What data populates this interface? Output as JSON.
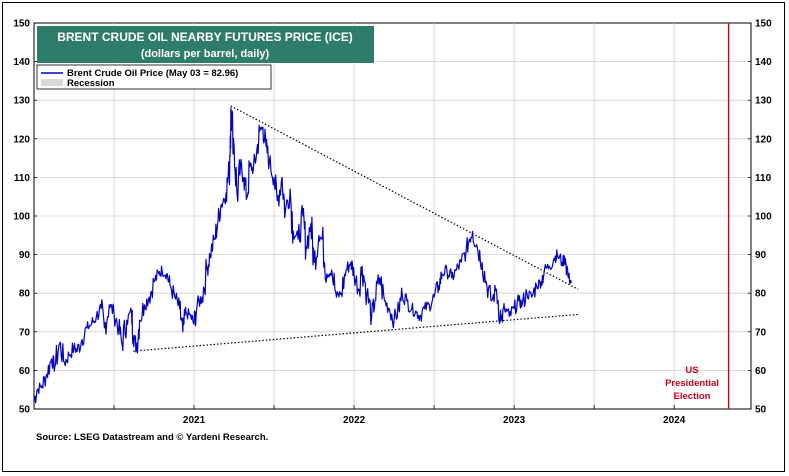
{
  "chart_data": {
    "type": "line",
    "title": "BRENT CRUDE OIL NEARBY FUTURES  PRICE (ICE)",
    "subtitle": "(dollars per barrel, daily)",
    "ylim": [
      50,
      150
    ],
    "yticks": [
      50,
      60,
      70,
      80,
      90,
      100,
      110,
      120,
      130,
      140,
      150
    ],
    "xlim": [
      2020.5,
      2024.98
    ],
    "x_tick_labels": [
      "2021",
      "2022",
      "2023",
      "2024"
    ],
    "legend": [
      {
        "name": "Brent Crude Oil Price (May 03 = 82.96)",
        "color": "#0000cc"
      },
      {
        "name": "Recession",
        "color": "#d9d9d9"
      }
    ],
    "series": [
      {
        "name": "Brent Crude Oil Price (May 03 = 82.96)",
        "color": "#0000cc",
        "points": [
          [
            2020.5,
            52
          ],
          [
            2020.52,
            55
          ],
          [
            2020.55,
            56
          ],
          [
            2020.58,
            59
          ],
          [
            2020.61,
            63
          ],
          [
            2020.63,
            61
          ],
          [
            2020.66,
            67
          ],
          [
            2020.69,
            62
          ],
          [
            2020.72,
            64
          ],
          [
            2020.75,
            66
          ],
          [
            2020.77,
            65
          ],
          [
            2020.8,
            68
          ],
          [
            2020.83,
            71
          ],
          [
            2020.86,
            72
          ],
          [
            2020.89,
            74
          ],
          [
            2020.92,
            76
          ],
          [
            2020.94,
            71
          ],
          [
            2020.97,
            77
          ],
          [
            2021.0,
            75
          ],
          [
            2021.03,
            71
          ],
          [
            2021.05,
            67
          ],
          [
            2021.08,
            73
          ],
          [
            2021.11,
            75
          ],
          [
            2021.12,
            69
          ],
          [
            2021.14,
            66
          ],
          [
            2021.16,
            73
          ],
          [
            2021.19,
            77
          ],
          [
            2021.22,
            79
          ],
          [
            2021.25,
            83
          ],
          [
            2021.28,
            85
          ],
          [
            2021.3,
            86
          ],
          [
            2021.33,
            85
          ],
          [
            2021.35,
            82
          ],
          [
            2021.38,
            79
          ],
          [
            2021.41,
            76
          ],
          [
            2021.43,
            70
          ],
          [
            2021.45,
            75
          ],
          [
            2021.48,
            74
          ],
          [
            2021.5,
            72
          ],
          [
            2021.52,
            77
          ],
          [
            2021.55,
            79
          ],
          [
            2021.58,
            86
          ],
          [
            2021.6,
            90
          ],
          [
            2021.63,
            94
          ],
          [
            2021.65,
            99
          ],
          [
            2021.67,
            103
          ],
          [
            2021.7,
            106
          ],
          [
            2021.72,
            112
          ],
          [
            2021.73,
            128
          ],
          [
            2021.75,
            118
          ],
          [
            2021.77,
            105
          ],
          [
            2021.79,
            113
          ],
          [
            2021.81,
            110
          ],
          [
            2021.83,
            105
          ],
          [
            2021.85,
            113
          ],
          [
            2021.87,
            112
          ],
          [
            2021.89,
            116
          ],
          [
            2021.91,
            122
          ],
          [
            2021.93,
            123
          ],
          [
            2021.95,
            118
          ],
          [
            2021.97,
            114
          ],
          [
            2022.0,
            110
          ],
          [
            2022.02,
            104
          ],
          [
            2022.05,
            110
          ],
          [
            2022.07,
            101
          ],
          [
            2022.1,
            107
          ],
          [
            2022.12,
            96
          ],
          [
            2022.15,
            94
          ],
          [
            2022.18,
            100
          ],
          [
            2022.2,
            92
          ],
          [
            2022.23,
            98
          ],
          [
            2022.25,
            88
          ],
          [
            2022.28,
            95
          ],
          [
            2022.3,
            94
          ],
          [
            2022.33,
            85
          ],
          [
            2022.36,
            86
          ],
          [
            2022.39,
            79
          ],
          [
            2022.42,
            80
          ],
          [
            2022.45,
            86
          ],
          [
            2022.48,
            88
          ],
          [
            2022.5,
            85
          ],
          [
            2022.53,
            81
          ],
          [
            2022.55,
            87
          ],
          [
            2022.58,
            80
          ],
          [
            2022.61,
            74
          ],
          [
            2022.63,
            78
          ],
          [
            2022.66,
            84
          ],
          [
            2022.69,
            78
          ],
          [
            2022.72,
            76
          ],
          [
            2022.75,
            73
          ],
          [
            2022.78,
            76
          ],
          [
            2022.8,
            80
          ],
          [
            2022.83,
            78
          ],
          [
            2022.86,
            76
          ],
          [
            2022.89,
            75
          ],
          [
            2022.91,
            74
          ],
          [
            2022.94,
            76
          ],
          [
            2022.97,
            77
          ],
          [
            2023.0,
            79
          ],
          [
            2023.03,
            82
          ],
          [
            2023.05,
            85
          ],
          [
            2023.08,
            86
          ],
          [
            2023.11,
            84
          ],
          [
            2023.14,
            86
          ],
          [
            2023.17,
            88
          ],
          [
            2023.2,
            91
          ],
          [
            2023.22,
            94
          ],
          [
            2023.24,
            96
          ],
          [
            2023.27,
            92
          ],
          [
            2023.3,
            88
          ],
          [
            2023.33,
            82
          ],
          [
            2023.36,
            78
          ],
          [
            2023.39,
            81
          ],
          [
            2023.42,
            73
          ],
          [
            2023.44,
            76
          ],
          [
            2023.47,
            74
          ],
          [
            2023.5,
            76
          ],
          [
            2023.53,
            78
          ],
          [
            2023.55,
            77
          ],
          [
            2023.58,
            80
          ],
          [
            2023.61,
            79
          ],
          [
            2023.64,
            82
          ],
          [
            2023.67,
            83
          ],
          [
            2023.69,
            86
          ],
          [
            2023.72,
            87
          ],
          [
            2023.75,
            89
          ],
          [
            2023.77,
            90
          ],
          [
            2023.8,
            88
          ],
          [
            2023.82,
            89
          ],
          [
            2023.84,
            84
          ],
          [
            2023.86,
            82.96
          ]
        ]
      }
    ],
    "trendlines": [
      {
        "name": "upper",
        "from": [
          2021.73,
          128.5
        ],
        "to": [
          2023.9,
          81
        ]
      },
      {
        "name": "lower",
        "from": [
          2021.12,
          65
        ],
        "to": [
          2023.9,
          74.5
        ]
      }
    ],
    "vline": {
      "x": 2024.84,
      "color": "#d0021b"
    },
    "annotation": [
      "US",
      "Presidential",
      "Election"
    ],
    "source": "Source: LSEG Datastream and © Yardeni Research."
  }
}
